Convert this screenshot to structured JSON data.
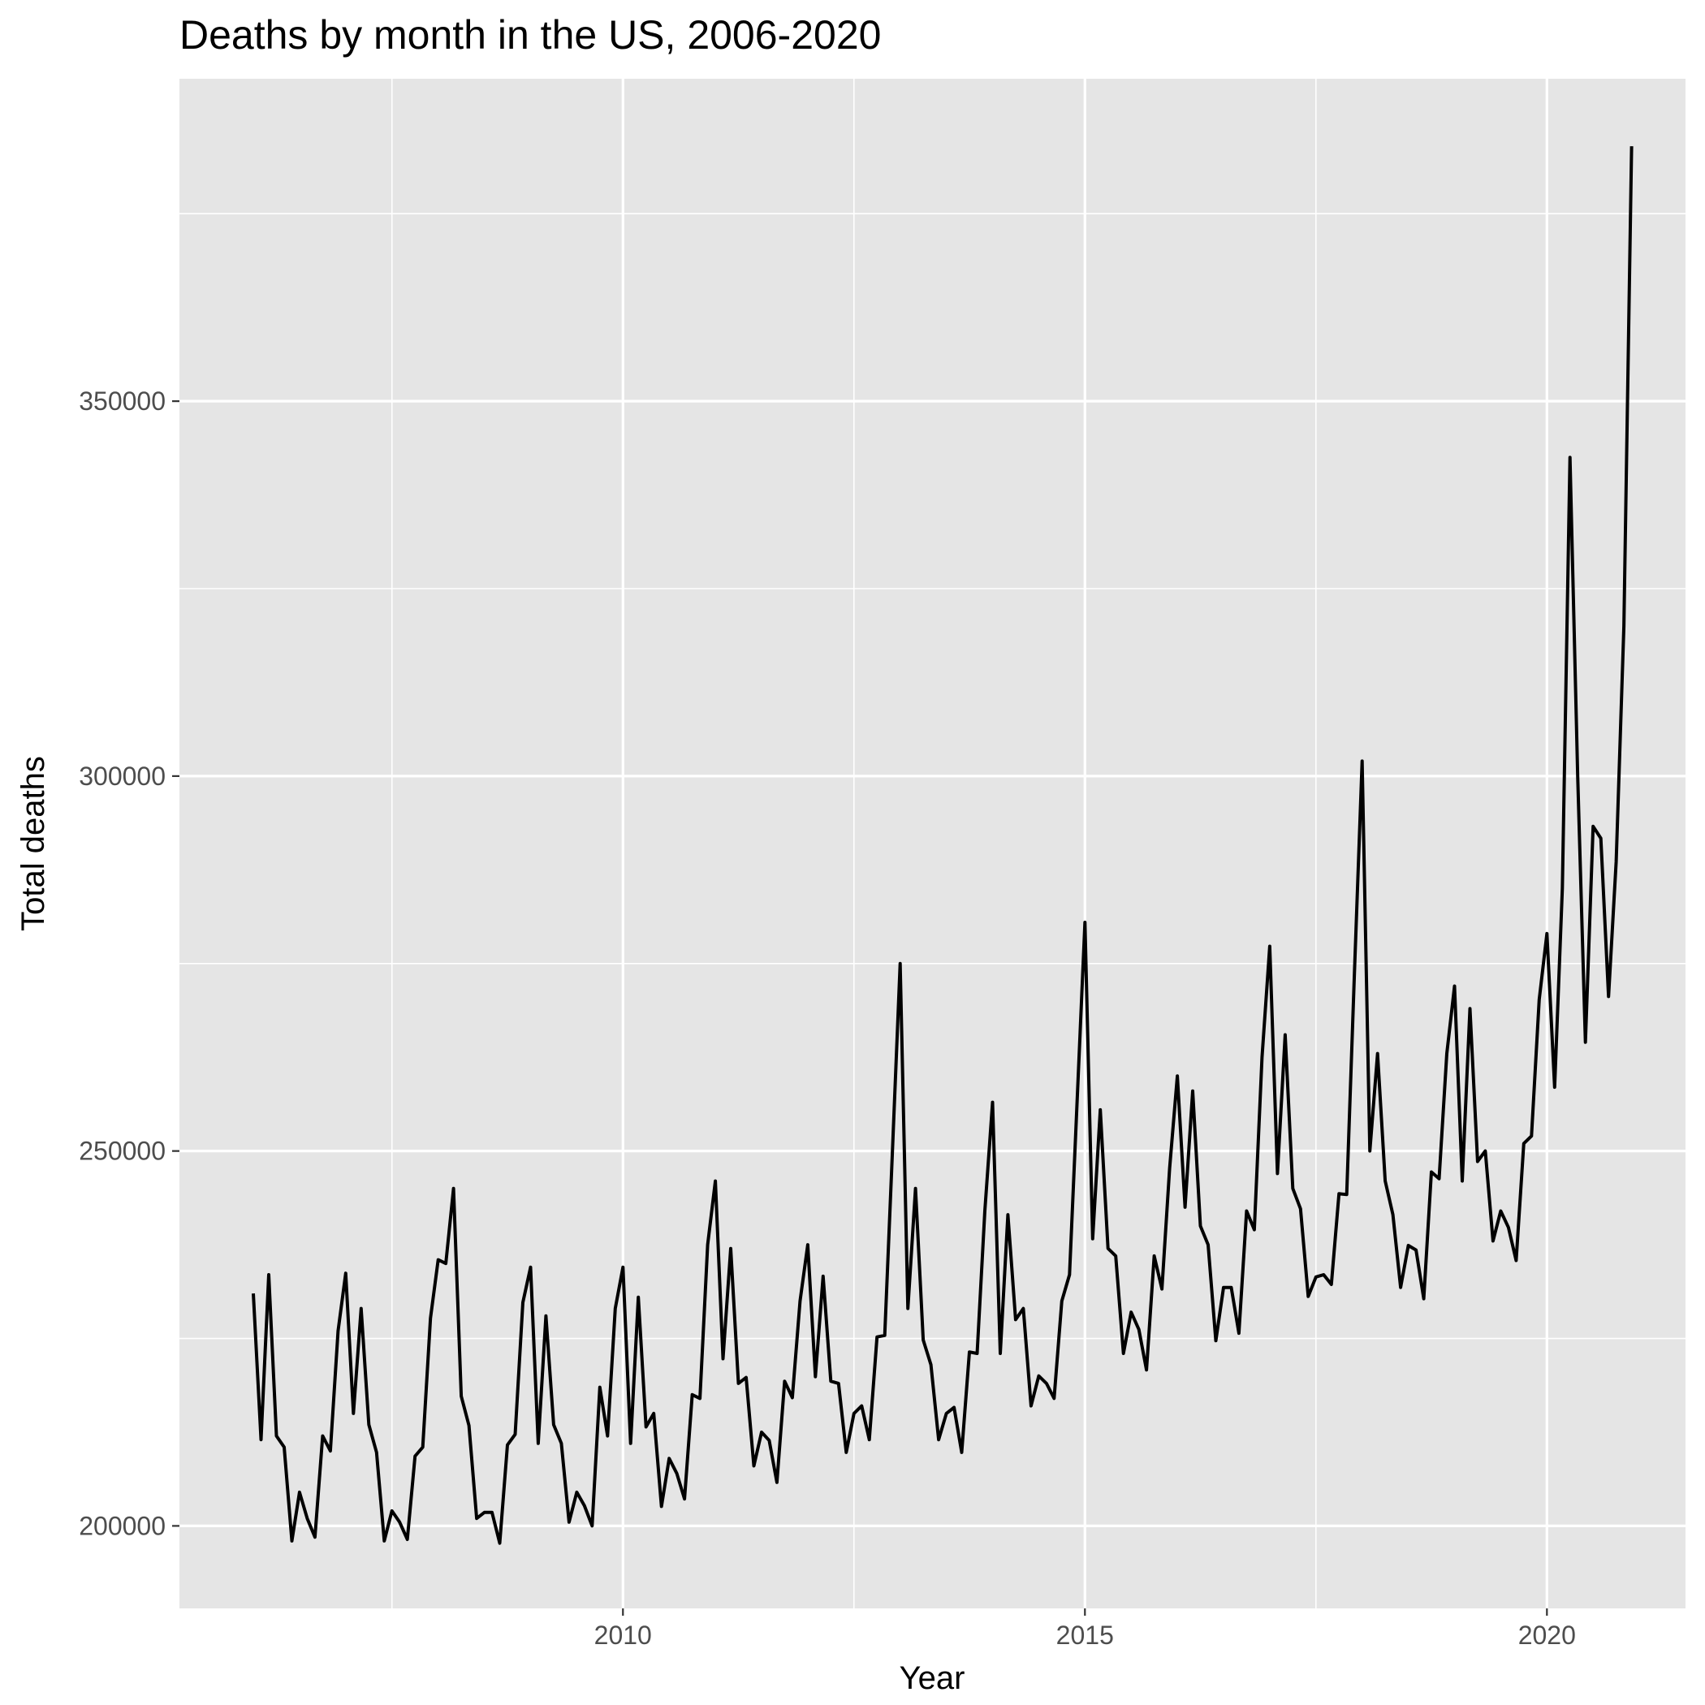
{
  "chart_data": {
    "type": "line",
    "title": "Deaths by month in the US, 2006-2020",
    "xlabel": "Year",
    "ylabel": "Total deaths",
    "xlim": [
      2005.2,
      2021.5
    ],
    "ylim": [
      189000,
      393000
    ],
    "x_ticks": [
      2010,
      2015,
      2020
    ],
    "y_ticks": [
      200000,
      250000,
      300000,
      350000
    ],
    "grid": true,
    "legend": "none",
    "colors": {
      "panel": "#e5e5e5",
      "grid": "#ffffff",
      "line": "#000000",
      "tick_text": "#4d4d4d"
    },
    "series": [
      {
        "x": [
          "2006-01",
          "2006-02",
          "2006-03",
          "2006-04",
          "2006-05",
          "2006-06",
          "2006-07",
          "2006-08",
          "2006-09",
          "2006-10",
          "2006-11",
          "2006-12",
          "2007-01",
          "2007-02",
          "2007-03",
          "2007-04",
          "2007-05",
          "2007-06",
          "2007-07",
          "2007-08",
          "2007-09",
          "2007-10",
          "2007-11",
          "2007-12",
          "2008-01",
          "2008-02",
          "2008-03",
          "2008-04",
          "2008-05",
          "2008-06",
          "2008-07",
          "2008-08",
          "2008-09",
          "2008-10",
          "2008-11",
          "2008-12",
          "2009-01",
          "2009-02",
          "2009-03",
          "2009-04",
          "2009-05",
          "2009-06",
          "2009-07",
          "2009-08",
          "2009-09",
          "2009-10",
          "2009-11",
          "2009-12",
          "2010-01",
          "2010-02",
          "2010-03",
          "2010-04",
          "2010-05",
          "2010-06",
          "2010-07",
          "2010-08",
          "2010-09",
          "2010-10",
          "2010-11",
          "2010-12",
          "2011-01",
          "2011-02",
          "2011-03",
          "2011-04",
          "2011-05",
          "2011-06",
          "2011-07",
          "2011-08",
          "2011-09",
          "2011-10",
          "2011-11",
          "2011-12",
          "2012-01",
          "2012-02",
          "2012-03",
          "2012-04",
          "2012-05",
          "2012-06",
          "2012-07",
          "2012-08",
          "2012-09",
          "2012-10",
          "2012-11",
          "2012-12",
          "2013-01",
          "2013-02",
          "2013-03",
          "2013-04",
          "2013-05",
          "2013-06",
          "2013-07",
          "2013-08",
          "2013-09",
          "2013-10",
          "2013-11",
          "2013-12",
          "2014-01",
          "2014-02",
          "2014-03",
          "2014-04",
          "2014-05",
          "2014-06",
          "2014-07",
          "2014-08",
          "2014-09",
          "2014-10",
          "2014-11",
          "2014-12",
          "2015-01",
          "2015-02",
          "2015-03",
          "2015-04",
          "2015-05",
          "2015-06",
          "2015-07",
          "2015-08",
          "2015-09",
          "2015-10",
          "2015-11",
          "2015-12",
          "2016-01",
          "2016-02",
          "2016-03",
          "2016-04",
          "2016-05",
          "2016-06",
          "2016-07",
          "2016-08",
          "2016-09",
          "2016-10",
          "2016-11",
          "2016-12",
          "2017-01",
          "2017-02",
          "2017-03",
          "2017-04",
          "2017-05",
          "2017-06",
          "2017-07",
          "2017-08",
          "2017-09",
          "2017-10",
          "2017-11",
          "2017-12",
          "2018-01",
          "2018-02",
          "2018-03",
          "2018-04",
          "2018-05",
          "2018-06",
          "2018-07",
          "2018-08",
          "2018-09",
          "2018-10",
          "2018-11",
          "2018-12",
          "2019-01",
          "2019-02",
          "2019-03",
          "2019-04",
          "2019-05",
          "2019-06",
          "2019-07",
          "2019-08",
          "2019-09",
          "2019-10",
          "2019-11",
          "2019-12",
          "2020-01",
          "2020-02",
          "2020-03",
          "2020-04",
          "2020-05",
          "2020-06",
          "2020-07",
          "2020-08",
          "2020-09",
          "2020-10",
          "2020-11",
          "2020-12"
        ],
        "values": [
          231000,
          211500,
          233500,
          212000,
          210500,
          198000,
          204500,
          201000,
          198500,
          212000,
          210000,
          226000,
          233700,
          215000,
          229000,
          213500,
          209800,
          198000,
          202000,
          200500,
          198200,
          209300,
          210500,
          227700,
          235500,
          235000,
          245000,
          217300,
          213400,
          201000,
          201800,
          201800,
          197700,
          210800,
          212200,
          229800,
          234500,
          211000,
          228000,
          213500,
          211000,
          200500,
          204500,
          202700,
          200000,
          218500,
          212000,
          229000,
          234500,
          211000,
          230500,
          213200,
          215000,
          202600,
          209000,
          207000,
          203600,
          217500,
          217000,
          237500,
          246000,
          222300,
          237000,
          219000,
          219800,
          208000,
          212500,
          211400,
          205800,
          219300,
          217100,
          230000,
          237500,
          219900,
          233300,
          219300,
          219000,
          209800,
          215000,
          216000,
          211500,
          225200,
          225400,
          250000,
          275000,
          229000,
          245000,
          224800,
          221500,
          211500,
          215000,
          215800,
          209800,
          223200,
          223000,
          242000,
          256500,
          223000,
          241500,
          227500,
          229000,
          216000,
          220000,
          219000,
          217000,
          230000,
          233500,
          257000,
          280500,
          238300,
          255500,
          237000,
          236000,
          223000,
          228500,
          226200,
          220800,
          236000,
          231600,
          247700,
          260000,
          242500,
          258000,
          240000,
          237500,
          224700,
          231800,
          231800,
          225700,
          242000,
          239500,
          262500,
          277300,
          247000,
          265500,
          245000,
          242300,
          230600,
          233200,
          233500,
          232200,
          244300,
          244200,
          273700,
          302000,
          250000,
          263000,
          246000,
          241500,
          231800,
          237400,
          236800,
          230300,
          247200,
          246300,
          263000,
          272000,
          246000,
          269000,
          248600,
          250000,
          238000,
          242000,
          239800,
          235400,
          251000,
          252000,
          270200,
          279000,
          258500,
          285000,
          342500,
          300000,
          264500,
          293300,
          291700,
          270600,
          288600,
          320000,
          384000
        ]
      }
    ]
  }
}
